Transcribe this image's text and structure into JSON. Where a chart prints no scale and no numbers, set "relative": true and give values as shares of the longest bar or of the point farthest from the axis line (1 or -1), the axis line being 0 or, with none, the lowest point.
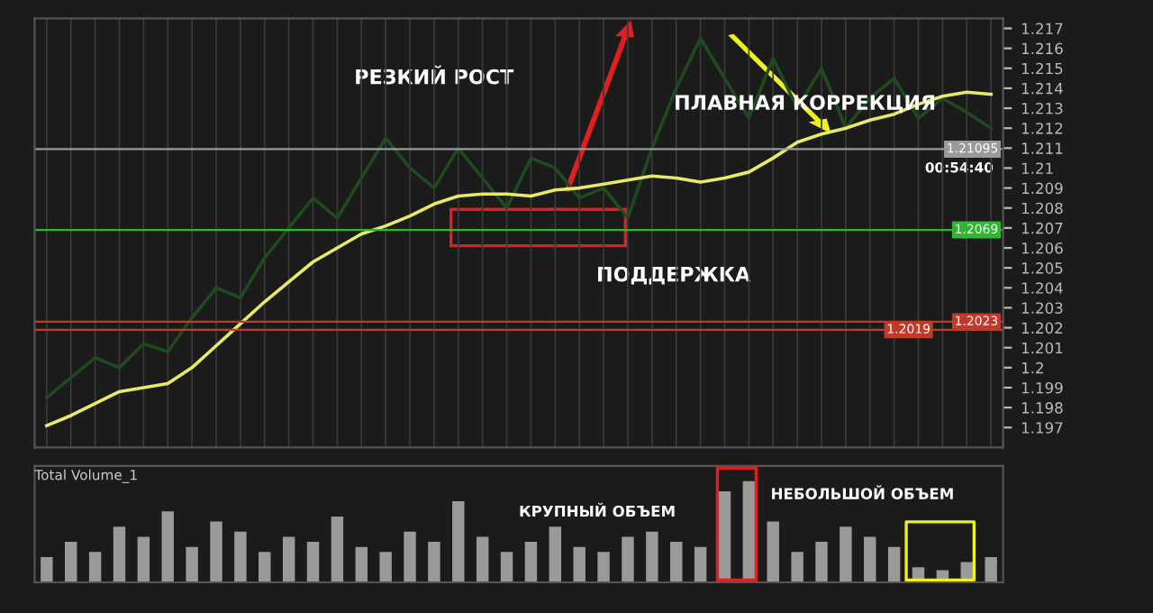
{
  "chart_data": [
    {
      "type": "line",
      "categories": [
        null,
        null,
        null,
        null,
        null,
        null,
        null,
        null,
        null,
        null,
        null,
        null,
        null,
        null,
        null,
        null,
        null,
        null,
        null,
        null,
        null,
        null,
        null,
        null,
        null,
        null,
        null,
        null,
        null,
        null,
        null,
        null,
        null,
        null,
        null,
        null,
        null,
        null,
        null,
        null
      ],
      "series": [
        {
          "color": "#1f4a1f",
          "values": [
            1.1985,
            1.1995,
            1.2005,
            1.2,
            1.2012,
            1.2008,
            1.2025,
            1.204,
            1.2035,
            1.2055,
            1.207,
            1.2085,
            1.2075,
            1.2095,
            1.2115,
            1.21,
            1.209,
            1.211,
            1.2095,
            1.208,
            1.2105,
            1.21,
            1.2085,
            1.209,
            1.2075,
            1.211,
            1.214,
            1.2165,
            1.2145,
            1.2125,
            1.2155,
            1.213,
            1.215,
            1.212,
            1.2135,
            1.2145,
            1.2125,
            1.2135,
            1.2128,
            1.212
          ]
        },
        {
          "color": "#e8e86a",
          "values": [
            1.1971,
            1.1976,
            1.1982,
            1.1988,
            1.199,
            1.1992,
            1.2,
            1.2011,
            1.2022,
            1.2033,
            1.2043,
            1.2053,
            1.206,
            1.2067,
            1.2071,
            1.2076,
            1.2082,
            1.2086,
            1.2087,
            1.2087,
            1.2086,
            1.2089,
            1.209,
            1.2092,
            1.2094,
            1.2096,
            1.2095,
            1.2093,
            1.2095,
            1.2098,
            1.2105,
            1.2113,
            1.2117,
            1.212,
            1.2124,
            1.2127,
            1.2132,
            1.2136,
            1.2138,
            1.2137
          ]
        }
      ],
      "ylim": [
        1.196,
        1.2175
      ],
      "yticks": [
        1.197,
        1.198,
        1.199,
        1.2,
        1.201,
        1.202,
        1.203,
        1.204,
        1.205,
        1.206,
        1.207,
        1.208,
        1.209,
        1.21,
        1.211,
        1.212,
        1.213,
        1.214,
        1.215,
        1.216,
        1.217
      ],
      "grid": "x",
      "ref_lines": [
        {
          "axis": "y",
          "value": 1.2069,
          "label": "1.2069",
          "color": "#2db82d"
        },
        {
          "axis": "y",
          "value": 1.2023,
          "label": "1.2023",
          "color": "#c0392b"
        },
        {
          "axis": "y",
          "value": 1.2019,
          "label": "1.2019",
          "color": "#c0392b"
        },
        {
          "axis": "y",
          "value": 1.21095,
          "label": "1.21095",
          "color": "#9a9a9a"
        }
      ],
      "annotations": [
        "РЕЗКИЙ РОСТ",
        "ПЛАВНАЯ КОРРЕКЦИЯ",
        "ПОДДЕРЖКА",
        "00:54:40"
      ]
    },
    {
      "type": "bar",
      "relative": true,
      "title": "Total Volume_1",
      "color": "#9a9a9a",
      "categories": [
        null,
        null,
        null,
        null,
        null,
        null,
        null,
        null,
        null,
        null,
        null,
        null,
        null,
        null,
        null,
        null,
        null,
        null,
        null,
        null,
        null,
        null,
        null,
        null,
        null,
        null,
        null,
        null,
        null,
        null,
        null,
        null,
        null,
        null,
        null,
        null,
        null,
        null,
        null,
        null
      ],
      "values": [
        0.25,
        0.4,
        0.3,
        0.55,
        0.45,
        0.7,
        0.35,
        0.6,
        0.5,
        0.3,
        0.45,
        0.4,
        0.65,
        0.35,
        0.3,
        0.5,
        0.4,
        0.8,
        0.45,
        0.3,
        0.4,
        0.55,
        0.35,
        0.3,
        0.45,
        0.5,
        0.4,
        0.35,
        0.9,
        1,
        0.6,
        0.3,
        0.4,
        0.55,
        0.45,
        0.35,
        0.15,
        0.12,
        0.2,
        0.25
      ],
      "annotations": [
        "КРУПНЫЙ ОБЪЕМ",
        "НЕБОЛЬШОЙ ОБЪЕМ"
      ]
    }
  ]
}
